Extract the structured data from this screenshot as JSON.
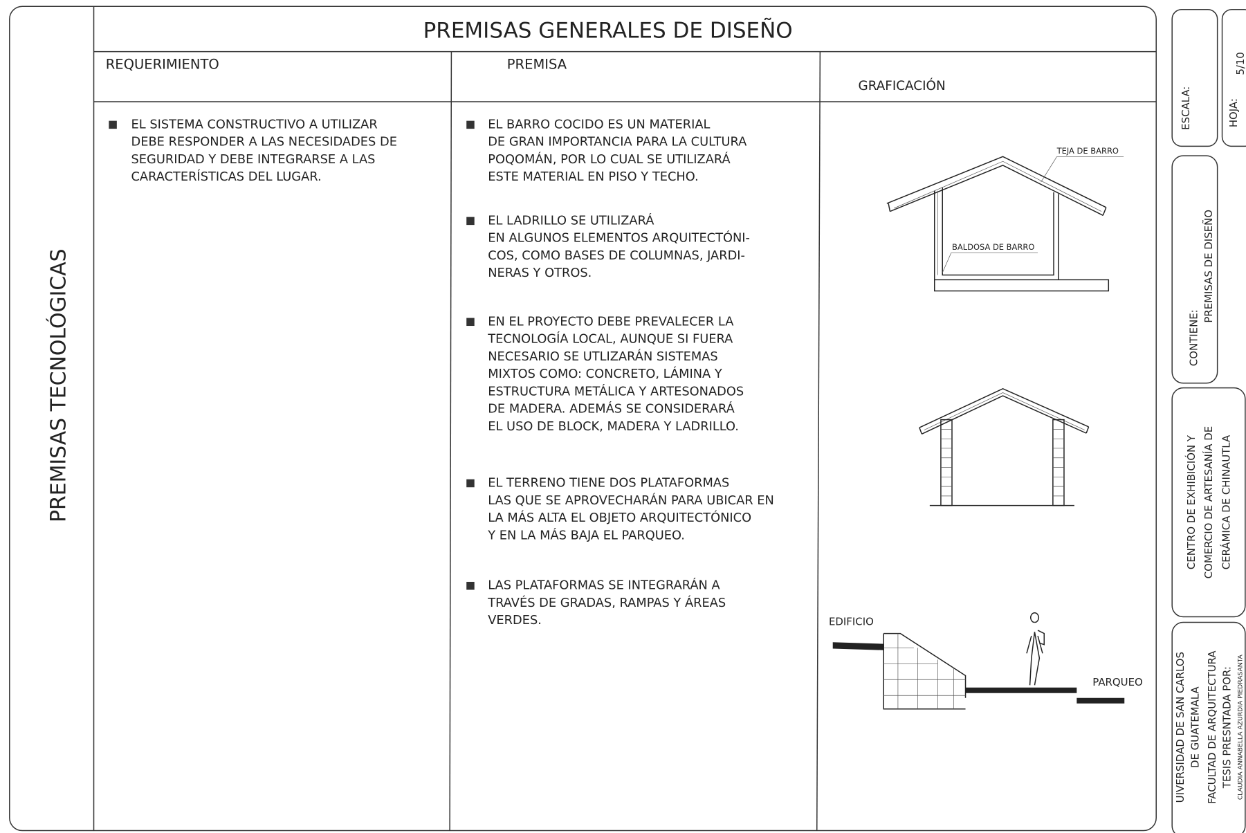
{
  "header": {
    "title": "PREMISAS GENERALES DE DISEÑO"
  },
  "section_label": "PREMISAS TECNOLÓGICAS",
  "columns": {
    "requirement": "REQUERIMIENTO",
    "premise": "PREMISA",
    "graphic": "GRAFICACIÓN"
  },
  "requirements": [
    {
      "lines": [
        "EL SISTEMA CONSTRUCTIVO A UTILIZAR",
        "DEBE RESPONDER A LAS NECESIDADES DE",
        "SEGURIDAD Y DEBE INTEGRARSE  A LAS",
        "CARACTERÍSTICAS DEL LUGAR."
      ]
    }
  ],
  "premises": [
    {
      "lines": [
        "EL BARRO COCIDO ES UN MATERIAL",
        "DE GRAN IMPORTANCIA PARA LA CULTURA",
        "POQOMÁN, POR LO CUAL SE UTILIZARÁ",
        "ESTE MATERIAL EN PISO Y TECHO."
      ]
    },
    {
      "lines": [
        "EL LADRILLO SE UTILIZARÁ",
        "EN ALGUNOS ELEMENTOS ARQUITECTÓNI-",
        "COS, COMO BASES DE COLUMNAS, JARDI-",
        "NERAS Y OTROS."
      ]
    },
    {
      "lines": [
        "EN EL PROYECTO DEBE PREVALECER LA",
        "TECNOLOGÍA LOCAL, AUNQUE SI FUERA",
        "NECESARIO SE UTLIZARÁN SISTEMAS",
        "MIXTOS COMO: CONCRETO, LÁMINA Y",
        "ESTRUCTURA METÁLICA Y ARTESONADOS",
        "DE MADERA.  ADEMÁS SE CONSIDERARÁ",
        "EL USO DE BLOCK, MADERA Y LADRILLO."
      ]
    },
    {
      "lines": [
        "EL TERRENO TIENE DOS PLATAFORMAS",
        "LAS QUE SE APROVECHARÁN PARA UBICAR EN",
        "LA MÁS ALTA EL OBJETO ARQUITECTÓNICO",
        "Y EN LA MÁS BAJA EL PARQUEO."
      ]
    },
    {
      "lines": [
        "LAS PLATAFORMAS SE INTEGRARÁN A",
        "TRAVÉS DE GRADAS, RAMPAS Y ÁREAS",
        "VERDES."
      ]
    }
  ],
  "graphic_labels": {
    "roof": "TEJA DE BARRO",
    "floor": "BALDOSA DE BARRO",
    "building": "EDIFICIO",
    "parking": "PARQUEO"
  },
  "title_block": {
    "scale_label": "ESCALA:",
    "sheet_label": "HOJA:",
    "sheet_number": "5/10",
    "contents_label": "CONTIENE:",
    "contents": "PREMISAS DE DISEÑO",
    "project": [
      "CENTRO DE EXHIBICIÓN Y",
      "COMERCIO DE ARTESANÍA DE",
      "CERÁMICA DE CHINAUTLA"
    ],
    "institution": [
      "UIVERSIDAD DE SAN CARLOS",
      "DE GUATEMALA",
      "FACULTAD DE ARQUITECTURA",
      "TESIS PRESNTADA POR:",
      "CLAUDIA ANNABELLA AZURDIA PIEDRASANTA"
    ]
  }
}
